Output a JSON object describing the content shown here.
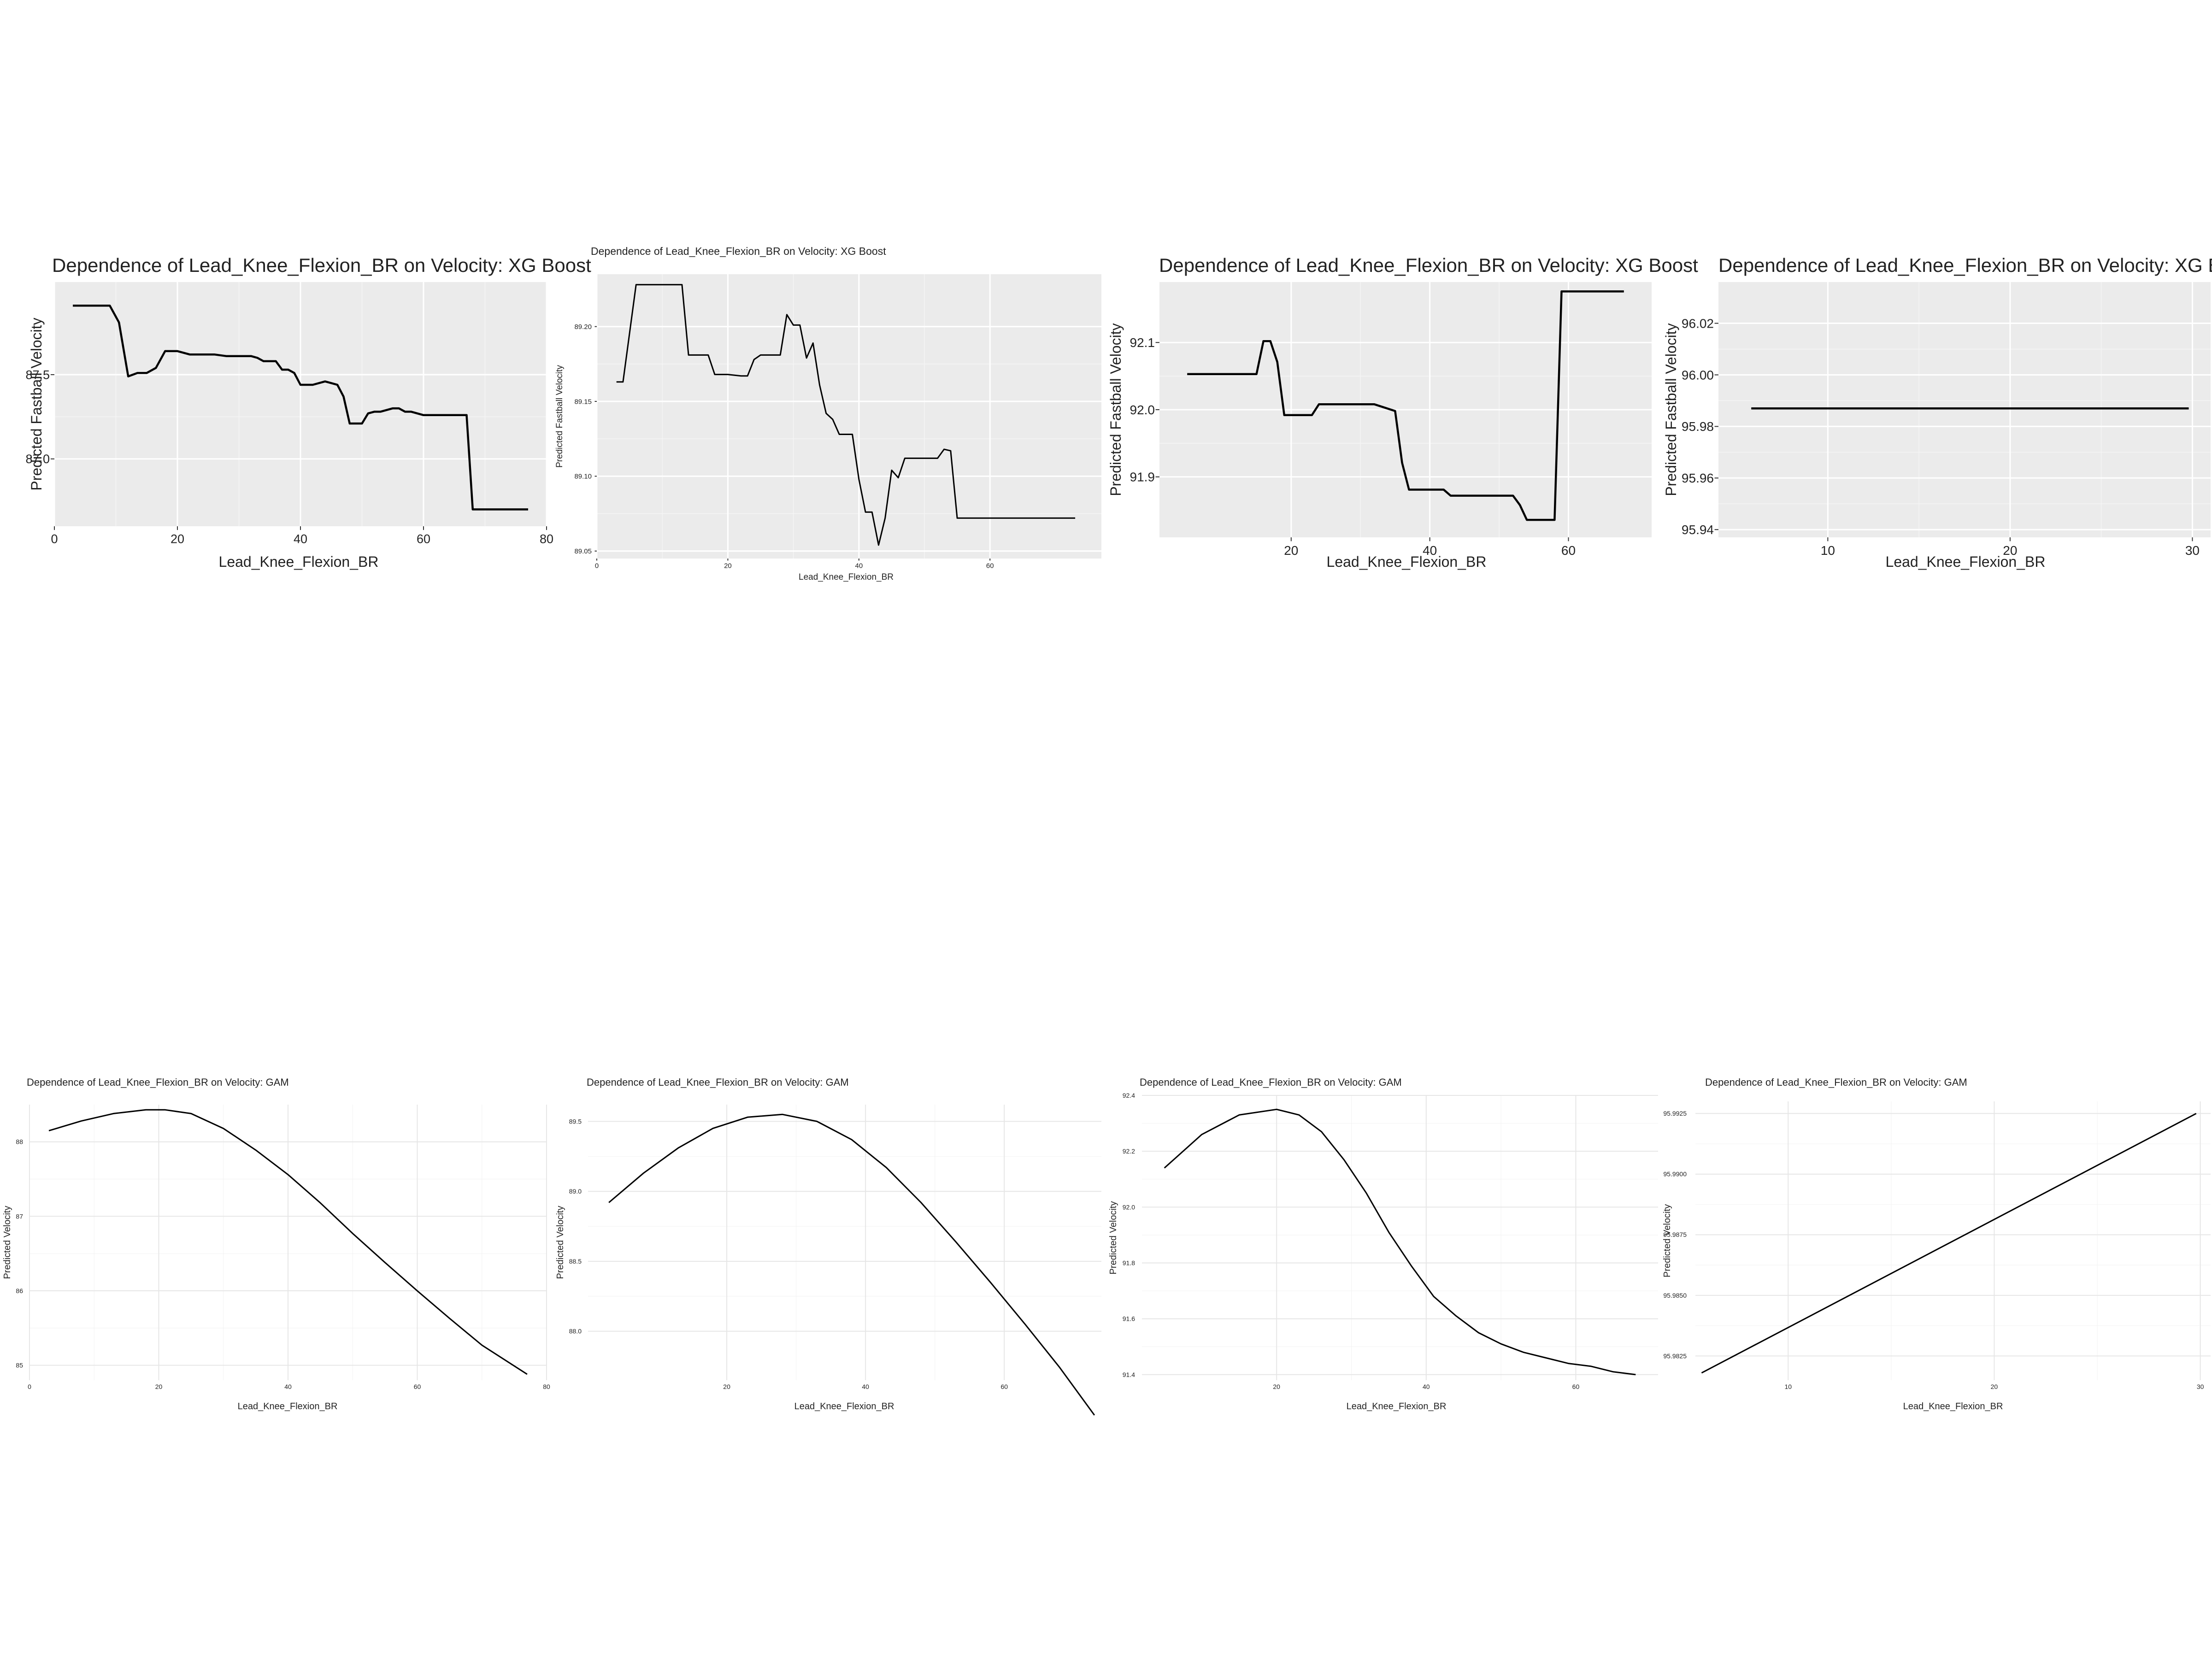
{
  "chart_data": [
    {
      "type": "line",
      "style": "ggplot-grey",
      "title": "Dependence of Lead_Knee_Flexion_BR on Velocity: XG Boost",
      "xlabel": "Lead_Knee_Flexion_BR",
      "ylabel": "Predicted Fastball Velocity",
      "xlim": [
        0,
        80
      ],
      "ylim": [
        86.6,
        88.05
      ],
      "xticks": [
        0,
        20,
        40,
        60,
        80
      ],
      "xtick_labels": [
        "0",
        "20",
        "40",
        "60",
        "80"
      ],
      "yticks": [
        87.0,
        87.5
      ],
      "ytick_labels": [
        "87.0",
        "87.5"
      ],
      "series": [
        {
          "x": [
            3,
            9,
            10.5,
            12,
            13.5,
            15,
            16.5,
            18,
            20,
            22,
            24,
            26,
            28,
            30,
            32,
            33,
            34,
            36,
            37,
            38,
            39,
            40,
            42,
            44,
            45,
            46,
            47,
            48,
            49,
            50,
            51,
            52,
            53,
            55,
            56,
            57,
            58,
            60,
            61,
            66,
            67,
            68,
            77
          ],
          "y": [
            87.91,
            87.91,
            87.81,
            87.49,
            87.51,
            87.51,
            87.54,
            87.64,
            87.64,
            87.62,
            87.62,
            87.62,
            87.61,
            87.61,
            87.61,
            87.6,
            87.58,
            87.58,
            87.53,
            87.53,
            87.51,
            87.44,
            87.44,
            87.46,
            87.45,
            87.44,
            87.37,
            87.21,
            87.21,
            87.21,
            87.27,
            87.28,
            87.28,
            87.3,
            87.3,
            87.28,
            87.28,
            87.26,
            87.26,
            87.26,
            87.26,
            86.7,
            86.7
          ]
        }
      ]
    },
    {
      "type": "line",
      "style": "ggplot-grey",
      "title": "Dependence of Lead_Knee_Flexion_BR on Velocity: XG Boost",
      "xlabel": "Lead_Knee_Flexion_BR",
      "ylabel": "Predicted Fastball Velocity",
      "xlim": [
        0,
        77
      ],
      "ylim": [
        89.045,
        89.235
      ],
      "xticks": [
        0,
        20,
        40,
        60
      ],
      "xtick_labels": [
        "0",
        "20",
        "40",
        "60"
      ],
      "yticks": [
        89.05,
        89.1,
        89.15,
        89.2
      ],
      "ytick_labels": [
        "89.05",
        "89.10",
        "89.15",
        "89.20"
      ],
      "series": [
        {
          "x": [
            3,
            4,
            6,
            7,
            12,
            13,
            14,
            16,
            17,
            18,
            20,
            22,
            23,
            24,
            25,
            27,
            28,
            29,
            30,
            31,
            32,
            33,
            34,
            35,
            36,
            37,
            38,
            39,
            40,
            41,
            42,
            43,
            44,
            45,
            46,
            47,
            48,
            49,
            50,
            51,
            52,
            53,
            54,
            55,
            58,
            59,
            60,
            61,
            62,
            63,
            65,
            66,
            73
          ],
          "y": [
            89.163,
            89.163,
            89.228,
            89.228,
            89.228,
            89.228,
            89.181,
            89.181,
            89.181,
            89.168,
            89.168,
            89.167,
            89.167,
            89.178,
            89.181,
            89.181,
            89.181,
            89.208,
            89.201,
            89.201,
            89.179,
            89.189,
            89.161,
            89.142,
            89.138,
            89.128,
            89.128,
            89.128,
            89.098,
            89.076,
            89.076,
            89.054,
            89.072,
            89.104,
            89.099,
            89.112,
            89.112,
            89.112,
            89.112,
            89.112,
            89.112,
            89.118,
            89.117,
            89.072,
            89.072,
            89.072,
            89.072,
            89.072,
            89.072,
            89.072,
            89.072,
            89.072,
            89.072
          ]
        }
      ]
    },
    {
      "type": "line",
      "style": "ggplot-grey",
      "title": "Dependence of Lead_Knee_Flexion_BR on Velocity: XG Boost",
      "xlabel": "Lead_Knee_Flexion_BR",
      "ylabel": "Predicted Fastball Velocity",
      "xlim": [
        1,
        72
      ],
      "ylim": [
        91.81,
        92.19
      ],
      "xticks": [
        20,
        40,
        60
      ],
      "xtick_labels": [
        "20",
        "40",
        "60"
      ],
      "yticks": [
        91.9,
        92.0,
        92.1
      ],
      "ytick_labels": [
        "91.9",
        "92.0",
        "92.1"
      ],
      "series": [
        {
          "x": [
            5,
            15,
            16,
            17,
            18,
            19,
            21,
            23,
            24,
            25,
            32,
            35,
            36,
            37,
            42,
            43,
            44,
            52,
            53,
            54,
            57,
            58,
            59,
            68
          ],
          "y": [
            92.053,
            92.053,
            92.102,
            92.102,
            92.071,
            91.992,
            91.992,
            91.992,
            92.008,
            92.008,
            92.008,
            91.998,
            91.921,
            91.881,
            91.881,
            91.872,
            91.872,
            91.872,
            91.858,
            91.836,
            91.836,
            91.836,
            92.176,
            92.176
          ]
        }
      ]
    },
    {
      "type": "line",
      "style": "ggplot-grey",
      "title": "Dependence of Lead_Knee_Flexion_BR on Velocity: XG Boost",
      "xlabel": "Lead_Knee_Flexion_BR",
      "ylabel": "Predicted Fastball Velocity",
      "xlim": [
        4,
        31
      ],
      "ylim": [
        95.937,
        96.036
      ],
      "xticks": [
        10,
        20,
        30
      ],
      "xtick_labels": [
        "10",
        "20",
        "30"
      ],
      "yticks": [
        95.94,
        95.96,
        95.98,
        96.0,
        96.02
      ],
      "ytick_labels": [
        "95.94",
        "95.96",
        "95.98",
        "96.00",
        "96.02"
      ],
      "series": [
        {
          "x": [
            5.8,
            29.8
          ],
          "y": [
            95.987,
            95.987
          ]
        }
      ]
    },
    {
      "type": "line",
      "style": "minimal",
      "title": "Dependence of Lead_Knee_Flexion_BR on Velocity: GAM",
      "xlabel": "Lead_Knee_Flexion_BR",
      "ylabel": "Predicted Velocity",
      "xlim": [
        0,
        80
      ],
      "ylim": [
        84.8,
        88.5
      ],
      "xticks": [
        0,
        20,
        40,
        60,
        80
      ],
      "xtick_labels": [
        "0",
        "20",
        "40",
        "60",
        "80"
      ],
      "yticks": [
        85,
        86,
        87,
        88
      ],
      "ytick_labels": [
        "85",
        "86",
        "87",
        "88"
      ],
      "series": [
        {
          "x": [
            3,
            8,
            13,
            18,
            21,
            25,
            30,
            35,
            40,
            45,
            50,
            55,
            60,
            65,
            70,
            77
          ],
          "y": [
            88.15,
            88.28,
            88.38,
            88.43,
            88.43,
            88.38,
            88.18,
            87.89,
            87.56,
            87.18,
            86.77,
            86.38,
            86.0,
            85.63,
            85.27,
            84.88
          ]
        }
      ]
    },
    {
      "type": "line",
      "style": "minimal",
      "title": "Dependence of Lead_Knee_Flexion_BR on Velocity: GAM",
      "xlabel": "Lead_Knee_Flexion_BR",
      "ylabel": "Predicted Velocity",
      "xlim": [
        0,
        74
      ],
      "ylim": [
        87.65,
        89.62
      ],
      "xticks": [
        20,
        40,
        60
      ],
      "xtick_labels": [
        "20",
        "40",
        "60"
      ],
      "yticks": [
        88.0,
        88.5,
        89.0,
        89.5
      ],
      "ytick_labels": [
        "88.0",
        "88.5",
        "89.0",
        "89.5"
      ],
      "series": [
        {
          "x": [
            3,
            8,
            13,
            18,
            23,
            28,
            33,
            38,
            43,
            48,
            53,
            58,
            63,
            68,
            73
          ],
          "y": [
            88.92,
            89.13,
            89.31,
            89.45,
            89.53,
            89.55,
            89.5,
            89.37,
            89.17,
            88.92,
            88.64,
            88.35,
            88.05,
            87.74,
            87.4
          ]
        }
      ]
    },
    {
      "type": "line",
      "style": "minimal",
      "title": "Dependence of Lead_Knee_Flexion_BR on Velocity: GAM",
      "xlabel": "Lead_Knee_Flexion_BR",
      "ylabel": "Predicted Velocity",
      "xlim": [
        2,
        71
      ],
      "ylim": [
        91.38,
        92.4
      ],
      "xticks": [
        20,
        40,
        60
      ],
      "xtick_labels": [
        "20",
        "40",
        "60"
      ],
      "yticks": [
        91.4,
        91.6,
        91.8,
        92.0,
        92.2,
        92.4
      ],
      "ytick_labels": [
        "91.4",
        "91.6",
        "91.8",
        "92.0",
        "92.2",
        "92.4"
      ],
      "series": [
        {
          "x": [
            5,
            10,
            15,
            20,
            23,
            26,
            29,
            32,
            35,
            38,
            41,
            44,
            47,
            50,
            53,
            56,
            59,
            62,
            65,
            68
          ],
          "y": [
            92.14,
            92.26,
            92.33,
            92.35,
            92.33,
            92.27,
            92.17,
            92.05,
            91.91,
            91.79,
            91.68,
            91.61,
            91.55,
            91.51,
            91.48,
            91.46,
            91.44,
            91.43,
            91.41,
            91.4
          ]
        }
      ]
    },
    {
      "type": "line",
      "style": "minimal",
      "title": "Dependence of Lead_Knee_Flexion_BR on Velocity: GAM",
      "xlabel": "Lead_Knee_Flexion_BR",
      "ylabel": "Predicted Velocity",
      "xlim": [
        5.5,
        30.5
      ],
      "ylim": [
        95.9815,
        95.993
      ],
      "xticks": [
        10,
        20,
        30
      ],
      "xtick_labels": [
        "10",
        "20",
        "30"
      ],
      "yticks": [
        95.9825,
        95.985,
        95.9875,
        95.99,
        95.9925
      ],
      "ytick_labels": [
        "95.9825",
        "95.9850",
        "95.9875",
        "95.9900",
        "95.9925"
      ],
      "series": [
        {
          "x": [
            5.8,
            29.8
          ],
          "y": [
            95.9818,
            95.9925
          ]
        }
      ]
    }
  ]
}
